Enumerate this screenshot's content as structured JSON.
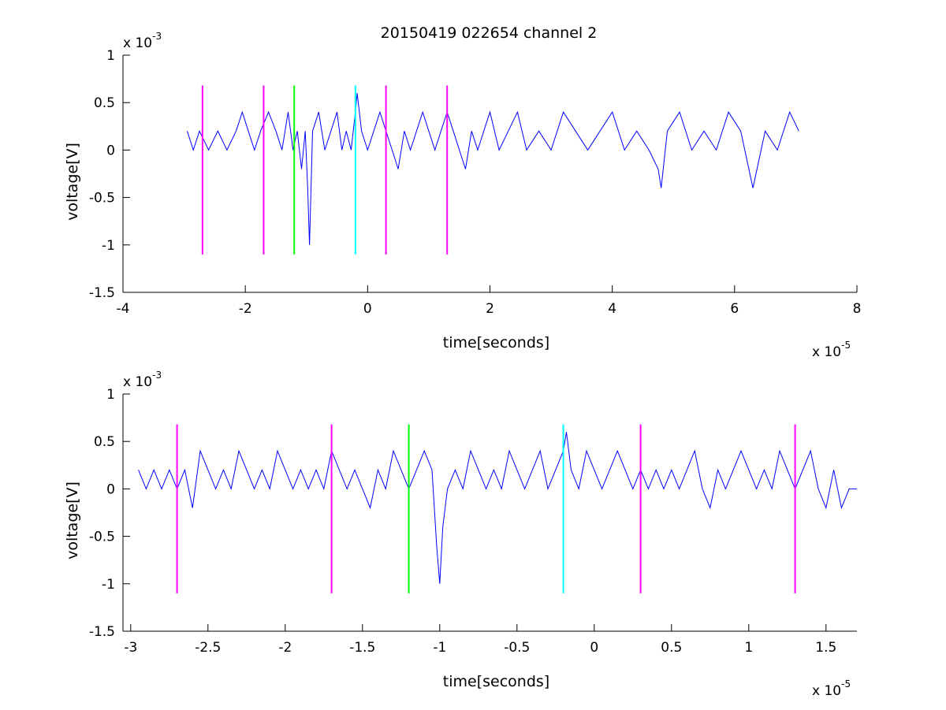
{
  "chart_data": [
    {
      "type": "line",
      "title": "20150419 022654 channel 2",
      "xlabel": "time[seconds]",
      "ylabel": "voltage[V]",
      "x_exponent": "x 10",
      "x_exponent_power": "-5",
      "y_exponent": "x 10",
      "y_exponent_power": "-3",
      "xlim": [
        -4,
        8
      ],
      "ylim": [
        -1.5,
        1
      ],
      "xticks": [
        -4,
        -2,
        0,
        2,
        4,
        6,
        8
      ],
      "xtick_labels": [
        "-4",
        "-2",
        "0",
        "2",
        "4",
        "6",
        "8"
      ],
      "yticks": [
        -1.5,
        -1,
        -0.5,
        0,
        0.5,
        1
      ],
      "ytick_labels": [
        "-1.5",
        "-1",
        "-0.5",
        "0",
        "0.5",
        "1"
      ],
      "grid": false,
      "signal": {
        "color": "#0000ff",
        "x": [
          -2.95,
          -2.85,
          -2.75,
          -2.6,
          -2.45,
          -2.3,
          -2.15,
          -2.05,
          -1.95,
          -1.85,
          -1.75,
          -1.62,
          -1.5,
          -1.4,
          -1.3,
          -1.22,
          -1.15,
          -1.08,
          -1.02,
          -0.98,
          -0.95,
          -0.9,
          -0.8,
          -0.7,
          -0.6,
          -0.5,
          -0.42,
          -0.35,
          -0.27,
          -0.2,
          -0.17,
          -0.1,
          0.0,
          0.1,
          0.2,
          0.3,
          0.4,
          0.5,
          0.6,
          0.7,
          0.8,
          0.9,
          1.0,
          1.1,
          1.2,
          1.3,
          1.4,
          1.5,
          1.6,
          1.7,
          1.8,
          1.9,
          2.0,
          2.15,
          2.3,
          2.45,
          2.6,
          2.8,
          3.0,
          3.2,
          3.4,
          3.6,
          3.8,
          4.0,
          4.2,
          4.4,
          4.6,
          4.75,
          4.8,
          4.9,
          5.1,
          5.3,
          5.5,
          5.7,
          5.9,
          6.1,
          6.3,
          6.5,
          6.7,
          6.9,
          7.05
        ],
        "y": [
          0.2,
          0.0,
          0.2,
          0.0,
          0.2,
          0.0,
          0.2,
          0.4,
          0.2,
          0.0,
          0.2,
          0.4,
          0.2,
          0.0,
          0.4,
          0.0,
          0.2,
          -0.2,
          0.2,
          -0.4,
          -1.0,
          0.2,
          0.4,
          0.0,
          0.2,
          0.4,
          0.0,
          0.2,
          0.0,
          0.4,
          0.6,
          0.2,
          0.0,
          0.2,
          0.4,
          0.2,
          0.0,
          -0.2,
          0.2,
          0.0,
          0.2,
          0.4,
          0.2,
          0.0,
          0.2,
          0.4,
          0.2,
          0.0,
          -0.2,
          0.2,
          0.0,
          0.2,
          0.4,
          0.0,
          0.2,
          0.4,
          0.0,
          0.2,
          0.0,
          0.4,
          0.2,
          0.0,
          0.2,
          0.4,
          0.0,
          0.2,
          0.0,
          -0.2,
          -0.4,
          0.2,
          0.4,
          0.0,
          0.2,
          0.0,
          0.4,
          0.2,
          -0.4,
          0.2,
          0.0,
          0.4,
          0.2
        ]
      },
      "markers": [
        {
          "x": -2.7,
          "color": "#ff00ff"
        },
        {
          "x": -1.7,
          "color": "#ff00ff"
        },
        {
          "x": -1.2,
          "color": "#00ff00"
        },
        {
          "x": -0.2,
          "color": "#00ffff"
        },
        {
          "x": 0.3,
          "color": "#ff00ff"
        },
        {
          "x": 1.3,
          "color": "#ff00ff"
        }
      ],
      "marker_range": [
        -1.1,
        0.68
      ]
    },
    {
      "type": "line",
      "xlabel": "time[seconds]",
      "ylabel": "voltage[V]",
      "x_exponent": "x 10",
      "x_exponent_power": "-5",
      "y_exponent": "x 10",
      "y_exponent_power": "-3",
      "xlim": [
        -3.05,
        1.7
      ],
      "ylim": [
        -1.5,
        1
      ],
      "xticks": [
        -3,
        -2.5,
        -2,
        -1.5,
        -1,
        -0.5,
        0,
        0.5,
        1,
        1.5
      ],
      "xtick_labels": [
        "-3",
        "-2.5",
        "-2",
        "-1.5",
        "-1",
        "-0.5",
        "0",
        "0.5",
        "1",
        "1.5"
      ],
      "yticks": [
        -1.5,
        -1,
        -0.5,
        0,
        0.5,
        1
      ],
      "ytick_labels": [
        "-1.5",
        "-1",
        "-0.5",
        "0",
        "0.5",
        "1"
      ],
      "grid": false,
      "signal": {
        "color": "#0000ff",
        "x": [
          -2.95,
          -2.9,
          -2.85,
          -2.8,
          -2.75,
          -2.7,
          -2.65,
          -2.6,
          -2.55,
          -2.5,
          -2.45,
          -2.4,
          -2.35,
          -2.3,
          -2.25,
          -2.2,
          -2.15,
          -2.1,
          -2.05,
          -2.0,
          -1.95,
          -1.9,
          -1.85,
          -1.8,
          -1.75,
          -1.7,
          -1.65,
          -1.6,
          -1.55,
          -1.5,
          -1.45,
          -1.4,
          -1.35,
          -1.3,
          -1.25,
          -1.2,
          -1.15,
          -1.1,
          -1.05,
          -1.02,
          -1.0,
          -0.98,
          -0.95,
          -0.9,
          -0.85,
          -0.8,
          -0.75,
          -0.7,
          -0.65,
          -0.6,
          -0.55,
          -0.5,
          -0.45,
          -0.4,
          -0.35,
          -0.3,
          -0.25,
          -0.2,
          -0.18,
          -0.15,
          -0.1,
          -0.05,
          0.0,
          0.05,
          0.1,
          0.15,
          0.2,
          0.25,
          0.3,
          0.35,
          0.4,
          0.45,
          0.5,
          0.55,
          0.6,
          0.65,
          0.7,
          0.75,
          0.8,
          0.85,
          0.9,
          0.95,
          1.0,
          1.05,
          1.1,
          1.15,
          1.2,
          1.25,
          1.3,
          1.35,
          1.4,
          1.45,
          1.5,
          1.55,
          1.6,
          1.65,
          1.7
        ],
        "y": [
          0.2,
          0.0,
          0.2,
          0.0,
          0.2,
          0.0,
          0.2,
          -0.2,
          0.4,
          0.2,
          0.0,
          0.2,
          0.0,
          0.4,
          0.2,
          0.0,
          0.2,
          0.0,
          0.4,
          0.2,
          0.0,
          0.2,
          0.0,
          0.2,
          0.0,
          0.4,
          0.2,
          0.0,
          0.2,
          0.0,
          -0.2,
          0.2,
          0.0,
          0.4,
          0.2,
          0.0,
          0.2,
          0.4,
          0.2,
          -0.6,
          -1.0,
          -0.4,
          0.0,
          0.2,
          0.0,
          0.4,
          0.2,
          0.0,
          0.2,
          0.0,
          0.4,
          0.2,
          0.0,
          0.2,
          0.4,
          0.0,
          0.2,
          0.4,
          0.6,
          0.2,
          0.0,
          0.4,
          0.2,
          0.0,
          0.2,
          0.4,
          0.2,
          0.0,
          0.2,
          0.0,
          0.2,
          0.0,
          0.2,
          0.0,
          0.2,
          0.4,
          0.0,
          -0.2,
          0.2,
          0.0,
          0.2,
          0.4,
          0.2,
          0.0,
          0.2,
          0.0,
          0.4,
          0.2,
          0.0,
          0.2,
          0.4,
          0.0,
          -0.2,
          0.2,
          -0.2,
          0.0,
          0.0
        ]
      },
      "markers": [
        {
          "x": -2.7,
          "color": "#ff00ff"
        },
        {
          "x": -1.7,
          "color": "#ff00ff"
        },
        {
          "x": -1.2,
          "color": "#00ff00"
        },
        {
          "x": -0.2,
          "color": "#00ffff"
        },
        {
          "x": 0.3,
          "color": "#ff00ff"
        },
        {
          "x": 1.3,
          "color": "#ff00ff"
        }
      ],
      "marker_range": [
        -1.1,
        0.68
      ]
    }
  ]
}
